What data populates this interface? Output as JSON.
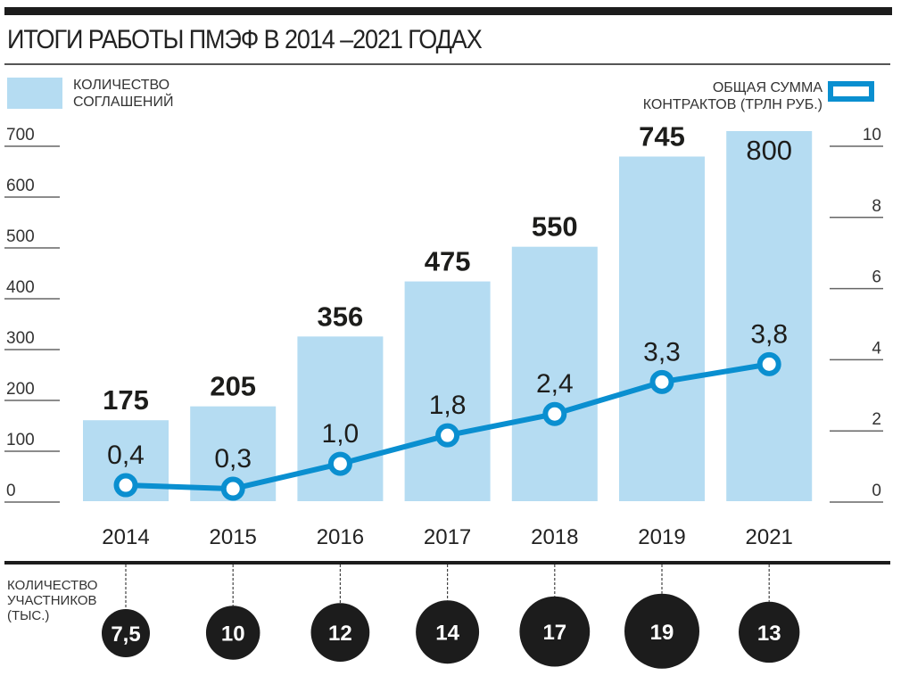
{
  "title": "ИТОГИ РАБОТЫ ПМЭФ В 2014 –2021 ГОДАХ",
  "legend": {
    "bars_label_line1": "КОЛИЧЕСТВО",
    "bars_label_line2": "СОГЛАШЕНИЙ",
    "line_label_line1": "ОБЩАЯ СУММА",
    "line_label_line2": "КОНТРАКТОВ (ТРЛН РУБ.)"
  },
  "participants": {
    "label_line1": "КОЛИЧЕСТВО",
    "label_line2": "УЧАСТНИКОВ",
    "label_line3": "(ТЫС.)",
    "values": [
      "7,5",
      "10",
      "12",
      "14",
      "17",
      "19",
      "13"
    ]
  },
  "colors": {
    "bar": "#b5dcf2",
    "line": "#0a8fd0",
    "circle": "#1c1c1c",
    "text": "#1d1d1b"
  },
  "chart_data": {
    "type": "bar",
    "title": "ИТОГИ РАБОТЫ ПМЭФ В 2014 –2021 ГОДАХ",
    "categories": [
      "2014",
      "2015",
      "2016",
      "2017",
      "2018",
      "2019",
      "2021"
    ],
    "series": [
      {
        "name": "КОЛИЧЕСТВО СОГЛАШЕНИЙ",
        "type": "bar",
        "axis": "left",
        "values": [
          175,
          205,
          356,
          475,
          550,
          745,
          800
        ],
        "labels": [
          "175",
          "205",
          "356",
          "475",
          "550",
          "745",
          "800"
        ]
      },
      {
        "name": "ОБЩАЯ СУММА КОНТРАКТОВ (ТРЛН РУБ.)",
        "type": "line",
        "axis": "right",
        "values": [
          0.4,
          0.3,
          1.0,
          1.8,
          2.4,
          3.3,
          3.8
        ],
        "labels": [
          "0,4",
          "0,3",
          "1,0",
          "1,8",
          "2,4",
          "3,3",
          "3,8"
        ]
      },
      {
        "name": "КОЛИЧЕСТВО УЧАСТНИКОВ (ТЫС.)",
        "type": "bubble",
        "values": [
          7.5,
          10,
          12,
          14,
          17,
          19,
          13
        ],
        "labels": [
          "7,5",
          "10",
          "12",
          "14",
          "17",
          "19",
          "13"
        ]
      }
    ],
    "left_axis": {
      "ticks": [
        "0",
        "100",
        "200",
        "300",
        "400",
        "500",
        "600",
        "700"
      ],
      "range": [
        0,
        700
      ]
    },
    "right_axis": {
      "ticks": [
        "0",
        "2",
        "4",
        "6",
        "8",
        "10"
      ],
      "range": [
        0,
        10
      ]
    },
    "xlabel": "",
    "ylabel": "",
    "grid": false,
    "legend_position": "top"
  }
}
